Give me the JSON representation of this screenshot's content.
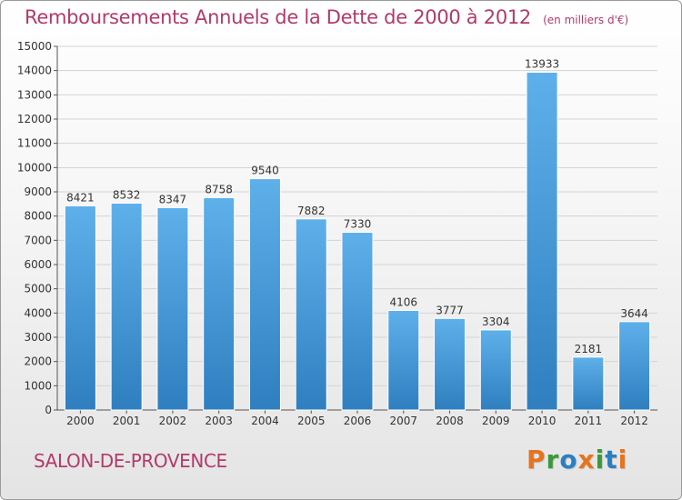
{
  "chart_data": {
    "type": "bar",
    "title": "Remboursements Annuels de la Dette de 2000 à 2012",
    "unit_note": "(en milliers d'€)",
    "categories": [
      "2000",
      "2001",
      "2002",
      "2003",
      "2004",
      "2005",
      "2006",
      "2007",
      "2008",
      "2009",
      "2010",
      "2011",
      "2012"
    ],
    "values": [
      8421,
      8532,
      8347,
      8758,
      9540,
      7882,
      7330,
      4106,
      3777,
      3304,
      13933,
      2181,
      3644
    ],
    "ylim": [
      0,
      15000
    ],
    "yticks": [
      0,
      1000,
      2000,
      3000,
      4000,
      5000,
      6000,
      7000,
      8000,
      9000,
      10000,
      11000,
      12000,
      13000,
      14000,
      15000
    ],
    "grid": true,
    "bar_color": "#4a9fdf"
  },
  "footer": {
    "city": "SALON-DE-PROVENCE",
    "brand_letters": [
      {
        "char": "P",
        "color": "#e8731f"
      },
      {
        "char": "r",
        "color": "#3a9a3a"
      },
      {
        "char": "o",
        "color": "#2b7fc1"
      },
      {
        "char": "x",
        "color": "#e8731f"
      },
      {
        "char": "i",
        "color": "#3a9a3a"
      },
      {
        "char": "t",
        "color": "#2b7fc1"
      },
      {
        "char": "i",
        "color": "#e8731f"
      }
    ]
  }
}
